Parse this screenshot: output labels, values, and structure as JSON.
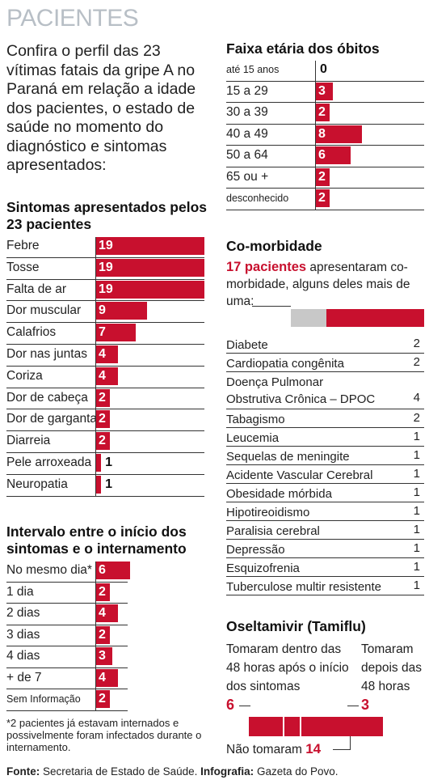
{
  "title": "PACIENTES",
  "intro": "Confira o perfil das 23 vítimas fatais da gripe A no Paraná em relação a idade dos pacientes, o estado de saúde no momento do diagnóstico e sintomas apresentados:",
  "colors": {
    "red": "#c8102e",
    "gray": "#c8c8c8",
    "title": "#b8bfc6"
  },
  "chart_data": [
    {
      "type": "bar",
      "title": "Sintomas apresentados pelos 23 pacientes",
      "categories": [
        "Febre",
        "Tosse",
        "Falta de ar",
        "Dor muscular",
        "Calafrios",
        "Dor nas juntas",
        "Coriza",
        "Dor de cabeça",
        "Dor de garganta",
        "Diarreia",
        "Pele arroxeada",
        "Neuropatia"
      ],
      "values": [
        19,
        19,
        19,
        9,
        7,
        4,
        4,
        2,
        2,
        2,
        1,
        1
      ]
    },
    {
      "type": "bar",
      "title": "Intervalo entre o início dos sintomas e o internamento",
      "categories": [
        "No mesmo dia*",
        "1 dia",
        "2 dias",
        "3 dias",
        "4 dias",
        "+ de 7",
        "Sem Informação"
      ],
      "values": [
        6,
        2,
        4,
        2,
        3,
        4,
        2
      ]
    },
    {
      "type": "bar",
      "title": "Faixa etária dos óbitos",
      "categories": [
        "até 15 anos",
        "15 a 29",
        "30 a 39",
        "40 a 49",
        "50 a 64",
        "65 ou +",
        "desconhecido"
      ],
      "values": [
        0,
        3,
        2,
        8,
        6,
        2,
        2
      ]
    },
    {
      "type": "table",
      "title": "Co-morbidade",
      "categories": [
        "Diabete",
        "Cardiopatia congênita",
        "Doença Pulmonar Obstrutiva Crônica – DPOC",
        "Tabagismo",
        "Leucemia",
        "Sequelas de meningite",
        "Acidente Vascular Cerebral",
        "Obesidade mórbida",
        "Hipotireoidismo",
        "Paralisia cerebral",
        "Depressão",
        "Esquizofrenia",
        "Tuberculose multir resistente"
      ],
      "values": [
        2,
        2,
        4,
        2,
        1,
        1,
        1,
        1,
        1,
        1,
        1,
        1,
        1
      ]
    },
    {
      "type": "bar",
      "title": "Oseltamivir (Tamiflu)",
      "categories": [
        "Tomaram dentro das 48 horas após o início dos sintomas",
        "Tomaram depois das 48 horas",
        "Não tomaram"
      ],
      "values": [
        6,
        3,
        14
      ]
    }
  ],
  "symptoms": {
    "heading": "Sintomas apresentados pelos 23 pacientes",
    "items": [
      {
        "label": "Febre",
        "value": "19"
      },
      {
        "label": "Tosse",
        "value": "19"
      },
      {
        "label": "Falta de ar",
        "value": "19"
      },
      {
        "label": "Dor muscular",
        "value": "9"
      },
      {
        "label": "Calafrios",
        "value": "7"
      },
      {
        "label": "Dor nas juntas",
        "value": "4"
      },
      {
        "label": "Coriza",
        "value": "4"
      },
      {
        "label": "Dor de cabeça",
        "value": "2"
      },
      {
        "label": "Dor de garganta",
        "value": "2"
      },
      {
        "label": "Diarreia",
        "value": "2"
      },
      {
        "label": "Pele arroxeada",
        "value": "1"
      },
      {
        "label": "Neuropatia",
        "value": "1"
      }
    ]
  },
  "interval": {
    "heading": "Intervalo entre o início dos sintomas e o internamento",
    "items": [
      {
        "label": "No mesmo dia*",
        "value": "6"
      },
      {
        "label": "1 dia",
        "value": "2"
      },
      {
        "label": "2 dias",
        "value": "4"
      },
      {
        "label": "3 dias",
        "value": "2"
      },
      {
        "label": "4 dias",
        "value": "3"
      },
      {
        "label": "+ de 7",
        "value": "4"
      },
      {
        "label": "Sem Informação",
        "value": "2"
      }
    ],
    "footnote": "*2 pacientes já estavam internados e possivelmente foram infectados durante o internamento."
  },
  "age": {
    "heading": "Faixa etária dos óbitos",
    "items": [
      {
        "label": "até 15 anos",
        "value": "0"
      },
      {
        "label": "15 a 29",
        "value": "3"
      },
      {
        "label": "30 a 39",
        "value": "2"
      },
      {
        "label": "40 a 49",
        "value": "8"
      },
      {
        "label": "50 a 64",
        "value": "6"
      },
      {
        "label": "65 ou +",
        "value": "2"
      },
      {
        "label": "desconhecido",
        "value": "2"
      }
    ]
  },
  "comorbidity": {
    "heading": "Co-morbidade",
    "highlight": "17 pacientes",
    "text": "apresentaram co-morbidade, alguns deles mais de uma:",
    "share": {
      "with": 17,
      "total": 23
    },
    "items": [
      {
        "label": "Diabete",
        "value": "2"
      },
      {
        "label": "Cardiopatia congênita",
        "value": "2"
      },
      {
        "label": "Doença Pulmonar",
        "label2": "Obstrutiva Crônica – DPOC",
        "value": "4"
      },
      {
        "label": "Tabagismo",
        "value": "2"
      },
      {
        "label": "Leucemia",
        "value": "1"
      },
      {
        "label": "Sequelas de meningite",
        "value": "1"
      },
      {
        "label": "Acidente Vascular Cerebral",
        "value": "1"
      },
      {
        "label": "Obesidade mórbida",
        "value": "1"
      },
      {
        "label": "Hipotireoidismo",
        "value": "1"
      },
      {
        "label": "Paralisia cerebral",
        "value": "1"
      },
      {
        "label": "Depressão",
        "value": "1"
      },
      {
        "label": "Esquizofrenia",
        "value": "1"
      },
      {
        "label": "Tuberculose multir resistente",
        "value": "1"
      }
    ]
  },
  "tamiflu": {
    "heading": "Oseltamivir (Tamiflu)",
    "within_label": "Tomaram dentro das 48 horas após o início dos sintomas",
    "after_label": "Tomaram depois das 48 horas",
    "within_value": "6",
    "after_value": "3",
    "none_label": "Não tomaram",
    "none_value": "14"
  },
  "footer": {
    "source_label": "Fonte:",
    "source": "Secretaria de Estado de Saúde.",
    "infographic_label": "Infografia:",
    "infographic": "Gazeta do Povo."
  }
}
